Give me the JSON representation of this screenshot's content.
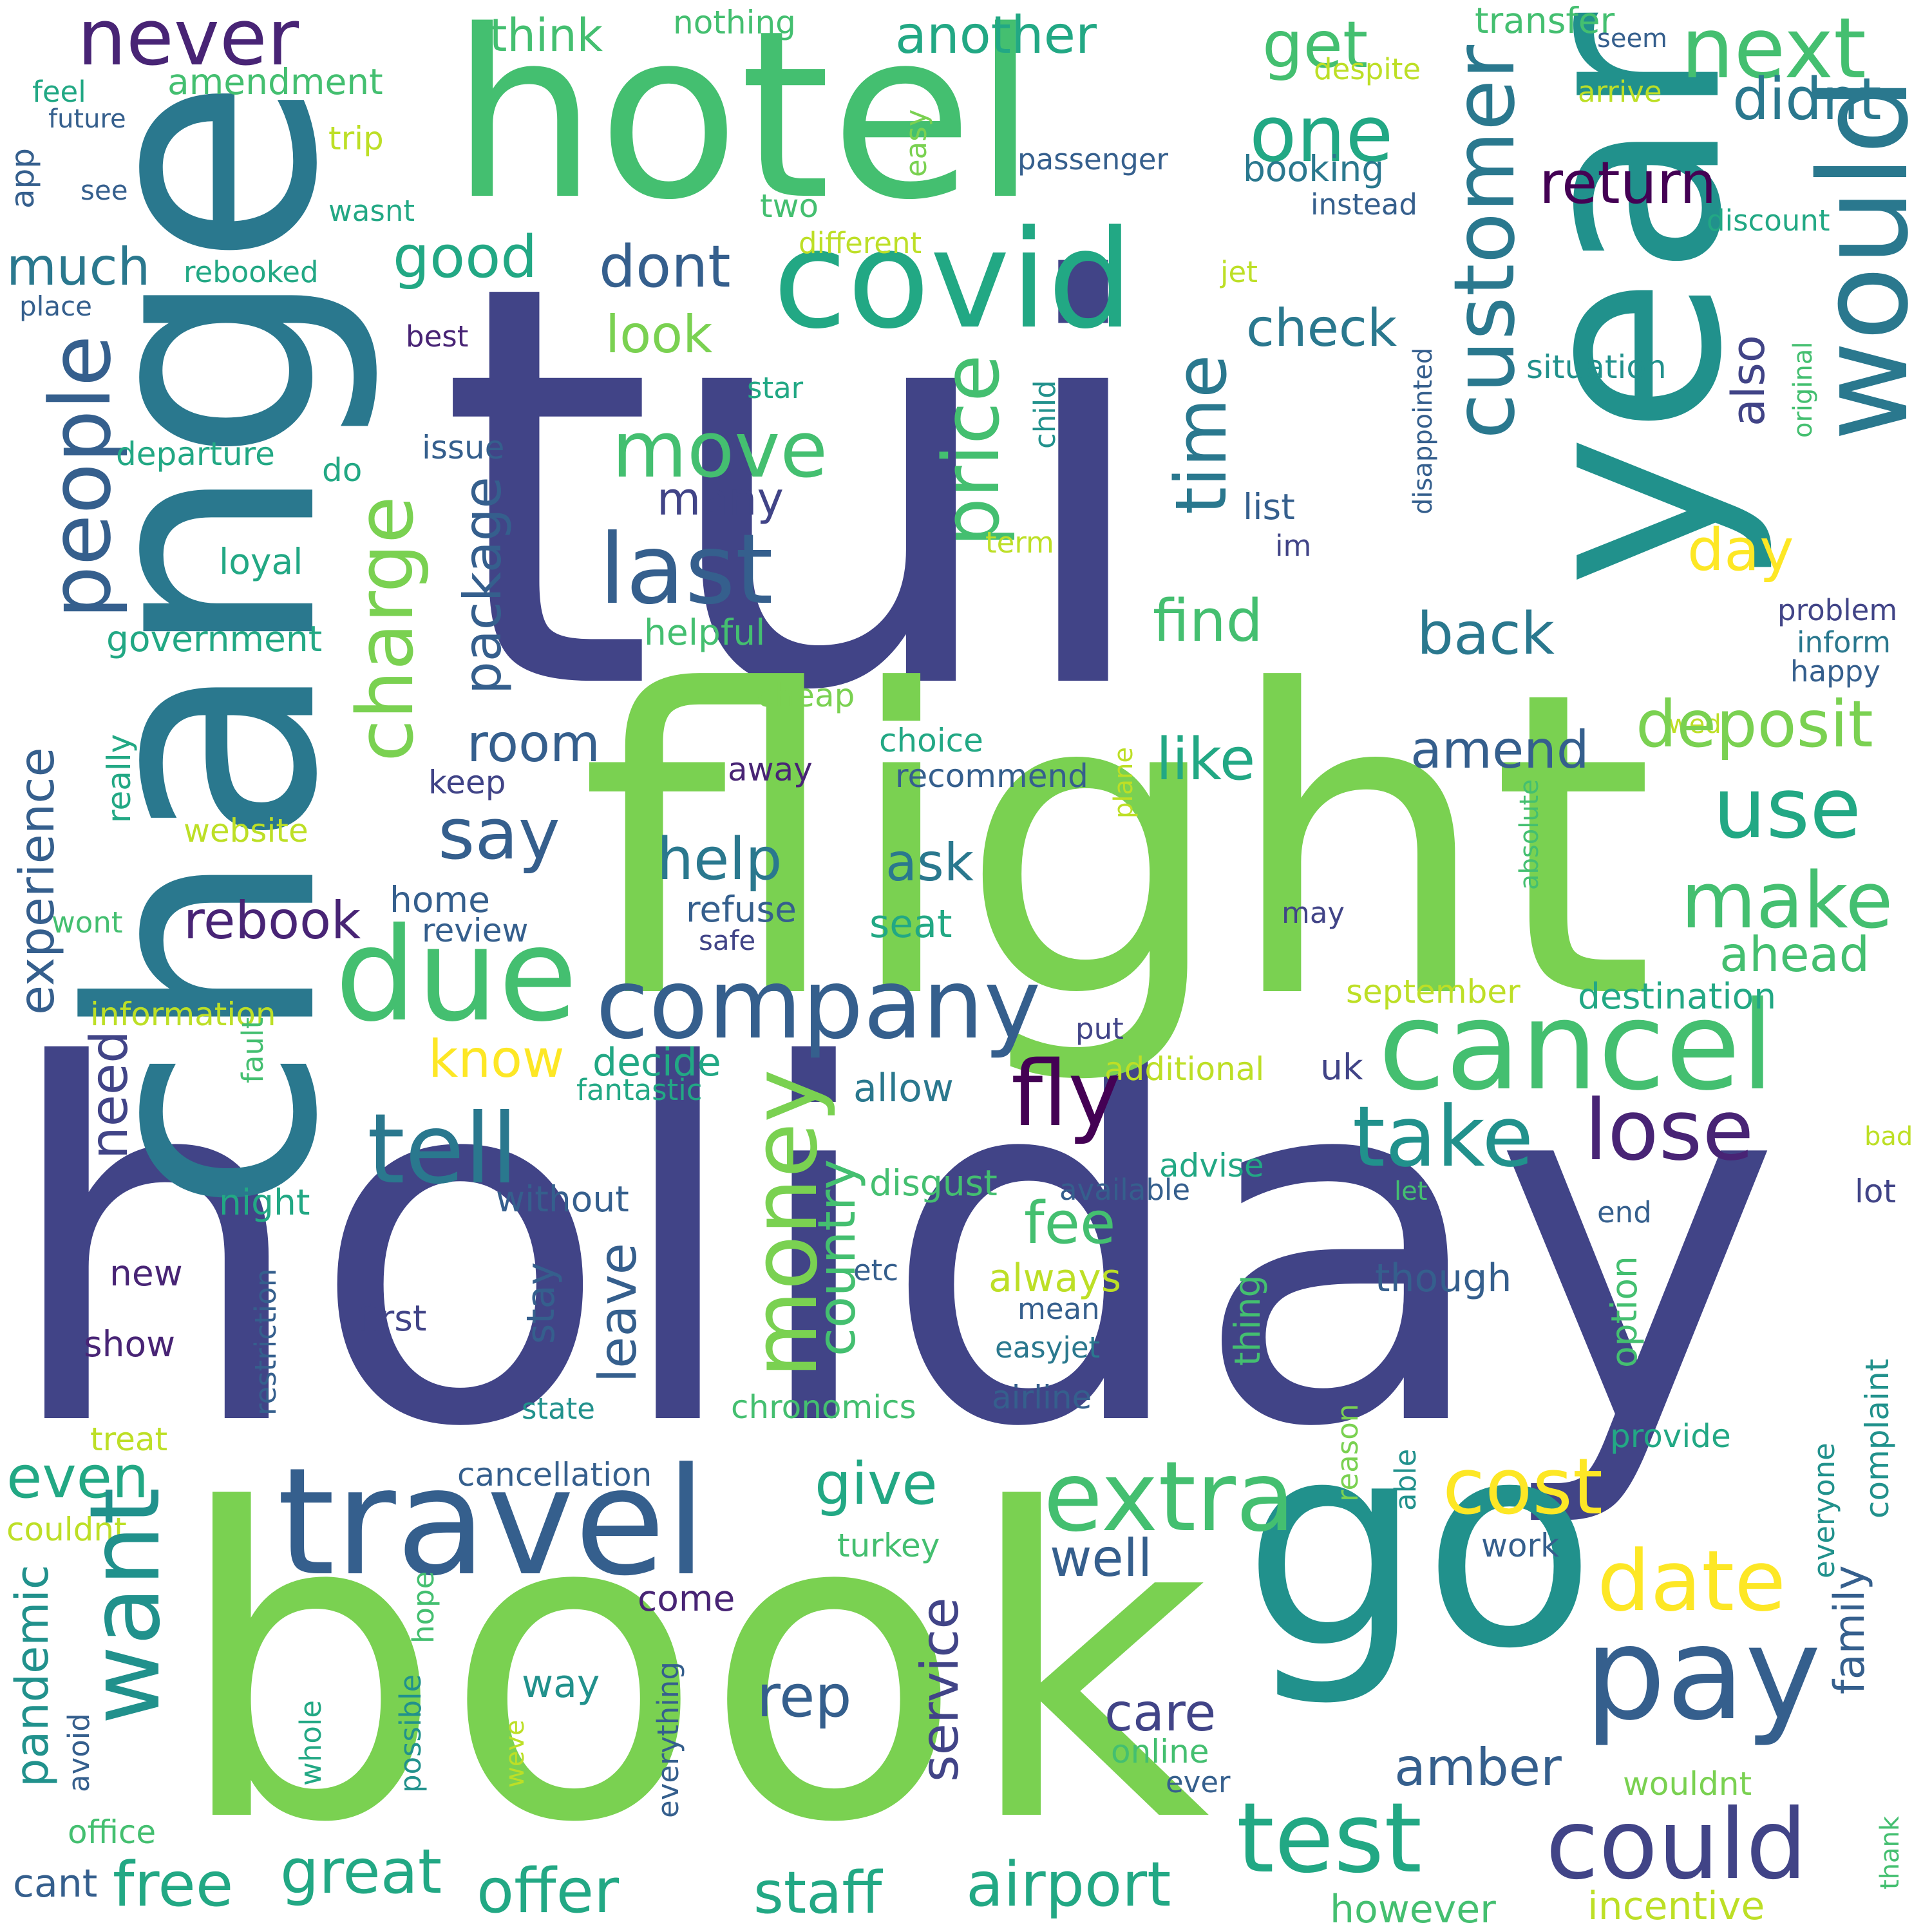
{
  "palette": {
    "purple": "#482475",
    "indigo": "#414487",
    "slate": "#355f8d",
    "steel": "#2a788e",
    "teal": "#21918c",
    "sea": "#22a884",
    "green": "#44bf70",
    "lime": "#7ad151",
    "yellowgreen": "#bddf26",
    "yellow": "#fde725",
    "darkpurple": "#440154"
  },
  "words": [
    {
      "text": "tui",
      "color": "indigo"
    },
    {
      "text": "holiday",
      "color": "indigo"
    },
    {
      "text": "flight",
      "color": "lime"
    },
    {
      "text": "change",
      "color": "steel"
    },
    {
      "text": "book",
      "color": "lime"
    },
    {
      "text": "hotel",
      "color": "green"
    },
    {
      "text": "year",
      "color": "teal"
    },
    {
      "text": "go",
      "color": "teal"
    },
    {
      "text": "covid",
      "color": "sea"
    },
    {
      "text": "would",
      "color": "steel"
    },
    {
      "text": "customer",
      "color": "steel"
    },
    {
      "text": "next",
      "color": "green"
    },
    {
      "text": "never",
      "color": "purple"
    },
    {
      "text": "one",
      "color": "sea"
    },
    {
      "text": "another",
      "color": "sea"
    },
    {
      "text": "get",
      "color": "green"
    },
    {
      "text": "think",
      "color": "green"
    },
    {
      "text": "nothing",
      "color": "green"
    },
    {
      "text": "transfer",
      "color": "green"
    },
    {
      "text": "seem",
      "color": "slate"
    },
    {
      "text": "despite",
      "color": "yellowgreen"
    },
    {
      "text": "arrive",
      "color": "yellowgreen"
    },
    {
      "text": "feel",
      "color": "sea"
    },
    {
      "text": "amendment",
      "color": "green"
    },
    {
      "text": "future",
      "color": "slate"
    },
    {
      "text": "app",
      "color": "slate"
    },
    {
      "text": "trip",
      "color": "yellowgreen"
    },
    {
      "text": "see",
      "color": "slate"
    },
    {
      "text": "wasnt",
      "color": "sea"
    },
    {
      "text": "much",
      "color": "steel"
    },
    {
      "text": "rebooked",
      "color": "sea"
    },
    {
      "text": "place",
      "color": "slate"
    },
    {
      "text": "people",
      "color": "slate"
    },
    {
      "text": "good",
      "color": "sea"
    },
    {
      "text": "best",
      "color": "purple"
    },
    {
      "text": "didnt",
      "color": "steel"
    },
    {
      "text": "return",
      "color": "darkpurple"
    },
    {
      "text": "booking",
      "color": "steel"
    },
    {
      "text": "passenger",
      "color": "slate"
    },
    {
      "text": "instead",
      "color": "slate"
    },
    {
      "text": "discount",
      "color": "sea"
    },
    {
      "text": "easy",
      "color": "lime"
    },
    {
      "text": "two",
      "color": "green"
    },
    {
      "text": "different",
      "color": "yellowgreen"
    },
    {
      "text": "jet",
      "color": "yellowgreen"
    },
    {
      "text": "dont",
      "color": "slate"
    },
    {
      "text": "look",
      "color": "lime"
    },
    {
      "text": "check",
      "color": "steel"
    },
    {
      "text": "situation",
      "color": "teal"
    },
    {
      "text": "move",
      "color": "green"
    },
    {
      "text": "last",
      "color": "slate"
    },
    {
      "text": "price",
      "color": "green"
    },
    {
      "text": "time",
      "color": "steel"
    },
    {
      "text": "also",
      "color": "indigo"
    },
    {
      "text": "disappointed",
      "color": "slate"
    },
    {
      "text": "original",
      "color": "green"
    },
    {
      "text": "child",
      "color": "teal"
    },
    {
      "text": "star",
      "color": "sea"
    },
    {
      "text": "departure",
      "color": "sea"
    },
    {
      "text": "issue",
      "color": "slate"
    },
    {
      "text": "do",
      "color": "sea"
    },
    {
      "text": "charge",
      "color": "lime"
    },
    {
      "text": "package",
      "color": "slate"
    },
    {
      "text": "many",
      "color": "indigo"
    },
    {
      "text": "list",
      "color": "slate"
    },
    {
      "text": "im",
      "color": "indigo"
    },
    {
      "text": "day",
      "color": "yellow"
    },
    {
      "text": "term",
      "color": "yellowgreen"
    },
    {
      "text": "loyal",
      "color": "sea"
    },
    {
      "text": "find",
      "color": "green"
    },
    {
      "text": "back",
      "color": "steel"
    },
    {
      "text": "problem",
      "color": "indigo"
    },
    {
      "text": "inform",
      "color": "steel"
    },
    {
      "text": "happy",
      "color": "slate"
    },
    {
      "text": "government",
      "color": "sea"
    },
    {
      "text": "helpful",
      "color": "green"
    },
    {
      "text": "cheap",
      "color": "lime"
    },
    {
      "text": "wed",
      "color": "yellowgreen"
    },
    {
      "text": "room",
      "color": "slate"
    },
    {
      "text": "deposit",
      "color": "lime"
    },
    {
      "text": "like",
      "color": "sea"
    },
    {
      "text": "amend",
      "color": "slate"
    },
    {
      "text": "choice",
      "color": "sea"
    },
    {
      "text": "recommend",
      "color": "slate"
    },
    {
      "text": "away",
      "color": "purple"
    },
    {
      "text": "keep",
      "color": "indigo"
    },
    {
      "text": "say",
      "color": "slate"
    },
    {
      "text": "use",
      "color": "sea"
    },
    {
      "text": "experience",
      "color": "slate"
    },
    {
      "text": "really",
      "color": "sea"
    },
    {
      "text": "website",
      "color": "yellowgreen"
    },
    {
      "text": "plane",
      "color": "yellowgreen"
    },
    {
      "text": "absolute",
      "color": "green"
    },
    {
      "text": "help",
      "color": "steel"
    },
    {
      "text": "ask",
      "color": "steel"
    },
    {
      "text": "make",
      "color": "green"
    },
    {
      "text": "rebook",
      "color": "purple"
    },
    {
      "text": "home",
      "color": "slate"
    },
    {
      "text": "review",
      "color": "slate"
    },
    {
      "text": "refuse",
      "color": "slate"
    },
    {
      "text": "safe",
      "color": "indigo"
    },
    {
      "text": "seat",
      "color": "sea"
    },
    {
      "text": "may",
      "color": "indigo"
    },
    {
      "text": "ahead",
      "color": "green"
    },
    {
      "text": "wont",
      "color": "green"
    },
    {
      "text": "due",
      "color": "green"
    },
    {
      "text": "company",
      "color": "slate"
    },
    {
      "text": "cancel",
      "color": "green"
    },
    {
      "text": "destination",
      "color": "sea"
    },
    {
      "text": "september",
      "color": "yellowgreen"
    },
    {
      "text": "information",
      "color": "yellowgreen"
    },
    {
      "text": "put",
      "color": "indigo"
    },
    {
      "text": "fault",
      "color": "green"
    },
    {
      "text": "need",
      "color": "indigo"
    },
    {
      "text": "know",
      "color": "yellow"
    },
    {
      "text": "decide",
      "color": "sea"
    },
    {
      "text": "fantastic",
      "color": "sea"
    },
    {
      "text": "allow",
      "color": "steel"
    },
    {
      "text": "additional",
      "color": "yellowgreen"
    },
    {
      "text": "uk",
      "color": "indigo"
    },
    {
      "text": "fly",
      "color": "darkpurple"
    },
    {
      "text": "money",
      "color": "lime"
    },
    {
      "text": "tell",
      "color": "steel"
    },
    {
      "text": "take",
      "color": "teal"
    },
    {
      "text": "lose",
      "color": "purple"
    },
    {
      "text": "country",
      "color": "green"
    },
    {
      "text": "advise",
      "color": "sea"
    },
    {
      "text": "disgust",
      "color": "green"
    },
    {
      "text": "available",
      "color": "slate"
    },
    {
      "text": "bad",
      "color": "yellowgreen"
    },
    {
      "text": "let",
      "color": "green"
    },
    {
      "text": "night",
      "color": "sea"
    },
    {
      "text": "without",
      "color": "slate"
    },
    {
      "text": "fee",
      "color": "green"
    },
    {
      "text": "end",
      "color": "slate"
    },
    {
      "text": "lot",
      "color": "indigo"
    },
    {
      "text": "new",
      "color": "purple"
    },
    {
      "text": "leave",
      "color": "slate"
    },
    {
      "text": "etc",
      "color": "slate"
    },
    {
      "text": "always",
      "color": "yellowgreen"
    },
    {
      "text": "though",
      "color": "slate"
    },
    {
      "text": "stay",
      "color": "slate"
    },
    {
      "text": "first",
      "color": "indigo"
    },
    {
      "text": "mean",
      "color": "slate"
    },
    {
      "text": "thing",
      "color": "green"
    },
    {
      "text": "option",
      "color": "green"
    },
    {
      "text": "show",
      "color": "purple"
    },
    {
      "text": "restriction",
      "color": "slate"
    },
    {
      "text": "easyjet",
      "color": "steel"
    },
    {
      "text": "state",
      "color": "teal"
    },
    {
      "text": "chronomics",
      "color": "green"
    },
    {
      "text": "airline",
      "color": "slate"
    },
    {
      "text": "provide",
      "color": "sea"
    },
    {
      "text": "treat",
      "color": "yellowgreen"
    },
    {
      "text": "even",
      "color": "sea"
    },
    {
      "text": "travel",
      "color": "slate"
    },
    {
      "text": "give",
      "color": "sea"
    },
    {
      "text": "extra",
      "color": "green"
    },
    {
      "text": "cost",
      "color": "yellow"
    },
    {
      "text": "cancellation",
      "color": "slate"
    },
    {
      "text": "reason",
      "color": "lime"
    },
    {
      "text": "able",
      "color": "teal"
    },
    {
      "text": "everyone",
      "color": "teal"
    },
    {
      "text": "complaint",
      "color": "teal"
    },
    {
      "text": "couldnt",
      "color": "yellowgreen"
    },
    {
      "text": "want",
      "color": "teal"
    },
    {
      "text": "well",
      "color": "slate"
    },
    {
      "text": "turkey",
      "color": "green"
    },
    {
      "text": "work",
      "color": "slate"
    },
    {
      "text": "date",
      "color": "yellow"
    },
    {
      "text": "pandemic",
      "color": "teal"
    },
    {
      "text": "come",
      "color": "purple"
    },
    {
      "text": "hope",
      "color": "green"
    },
    {
      "text": "service",
      "color": "indigo"
    },
    {
      "text": "family",
      "color": "slate"
    },
    {
      "text": "pay",
      "color": "slate"
    },
    {
      "text": "way",
      "color": "teal"
    },
    {
      "text": "rep",
      "color": "slate"
    },
    {
      "text": "care",
      "color": "indigo"
    },
    {
      "text": "online",
      "color": "green"
    },
    {
      "text": "amber",
      "color": "slate"
    },
    {
      "text": "avoid",
      "color": "slate"
    },
    {
      "text": "whole",
      "color": "sea"
    },
    {
      "text": "possible",
      "color": "teal"
    },
    {
      "text": "weve",
      "color": "yellowgreen"
    },
    {
      "text": "everything",
      "color": "slate"
    },
    {
      "text": "ever",
      "color": "slate"
    },
    {
      "text": "wouldnt",
      "color": "lime"
    },
    {
      "text": "thank",
      "color": "green"
    },
    {
      "text": "test",
      "color": "sea"
    },
    {
      "text": "could",
      "color": "indigo"
    },
    {
      "text": "office",
      "color": "green"
    },
    {
      "text": "cant",
      "color": "slate"
    },
    {
      "text": "free",
      "color": "sea"
    },
    {
      "text": "great",
      "color": "sea"
    },
    {
      "text": "offer",
      "color": "sea"
    },
    {
      "text": "staff",
      "color": "sea"
    },
    {
      "text": "airport",
      "color": "sea"
    },
    {
      "text": "however",
      "color": "green"
    },
    {
      "text": "incentive",
      "color": "yellowgreen"
    }
  ]
}
